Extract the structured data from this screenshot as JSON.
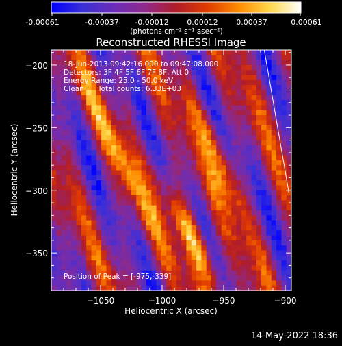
{
  "colorbar": {
    "tick_labels": [
      "-0.00061",
      "-0.00037",
      "-0.00012",
      "0.00012",
      "0.00037",
      "0.00061"
    ],
    "units_label": "(photons cm⁻² s⁻¹ asec⁻²)",
    "range": [
      -0.00061,
      0.00061
    ],
    "colors": [
      "#0000ff",
      "#3a2fd8",
      "#6a2db8",
      "#8e2a8a",
      "#b01c2a",
      "#e03a00",
      "#ff8c00",
      "#ffd84a",
      "#ffffff"
    ]
  },
  "annotations": {
    "time_range": "18-Jun-2013 09:42:16.000 to 09:47:08.000",
    "detectors": "Detectors: 3F 4F 5F 6F 7F 8F, Att 0",
    "energy_range": "Energy Range: 25.0 - 50.0 keV",
    "clean_label": "Clean",
    "total_counts": "Total counts: 6.33E+03",
    "peak_position": "Position of Peak = [-975,-339]"
  },
  "footer": {
    "timestamp": "14-May-2022 18:36"
  },
  "chart_data": {
    "type": "heatmap",
    "title": "Reconstructed RHESSI Image",
    "xlabel": "Heliocentric X (arcsec)",
    "ylabel": "Heliocentric Y (arcsec)",
    "xlim": [
      -1090,
      -895
    ],
    "ylim": [
      -380,
      -188
    ],
    "x_ticks": [
      -1050,
      -1000,
      -950,
      -900
    ],
    "y_ticks": [
      -200,
      -250,
      -300,
      -350
    ],
    "x_tick_labels": [
      "−1050",
      "−1000",
      "−950",
      "−900"
    ],
    "y_tick_labels": [
      "−200",
      "−250",
      "−300",
      "−350"
    ],
    "peak": [
      -975,
      -339
    ],
    "limb_line": [
      [
        -917,
        -188
      ],
      [
        -897,
        -302
      ]
    ]
  }
}
